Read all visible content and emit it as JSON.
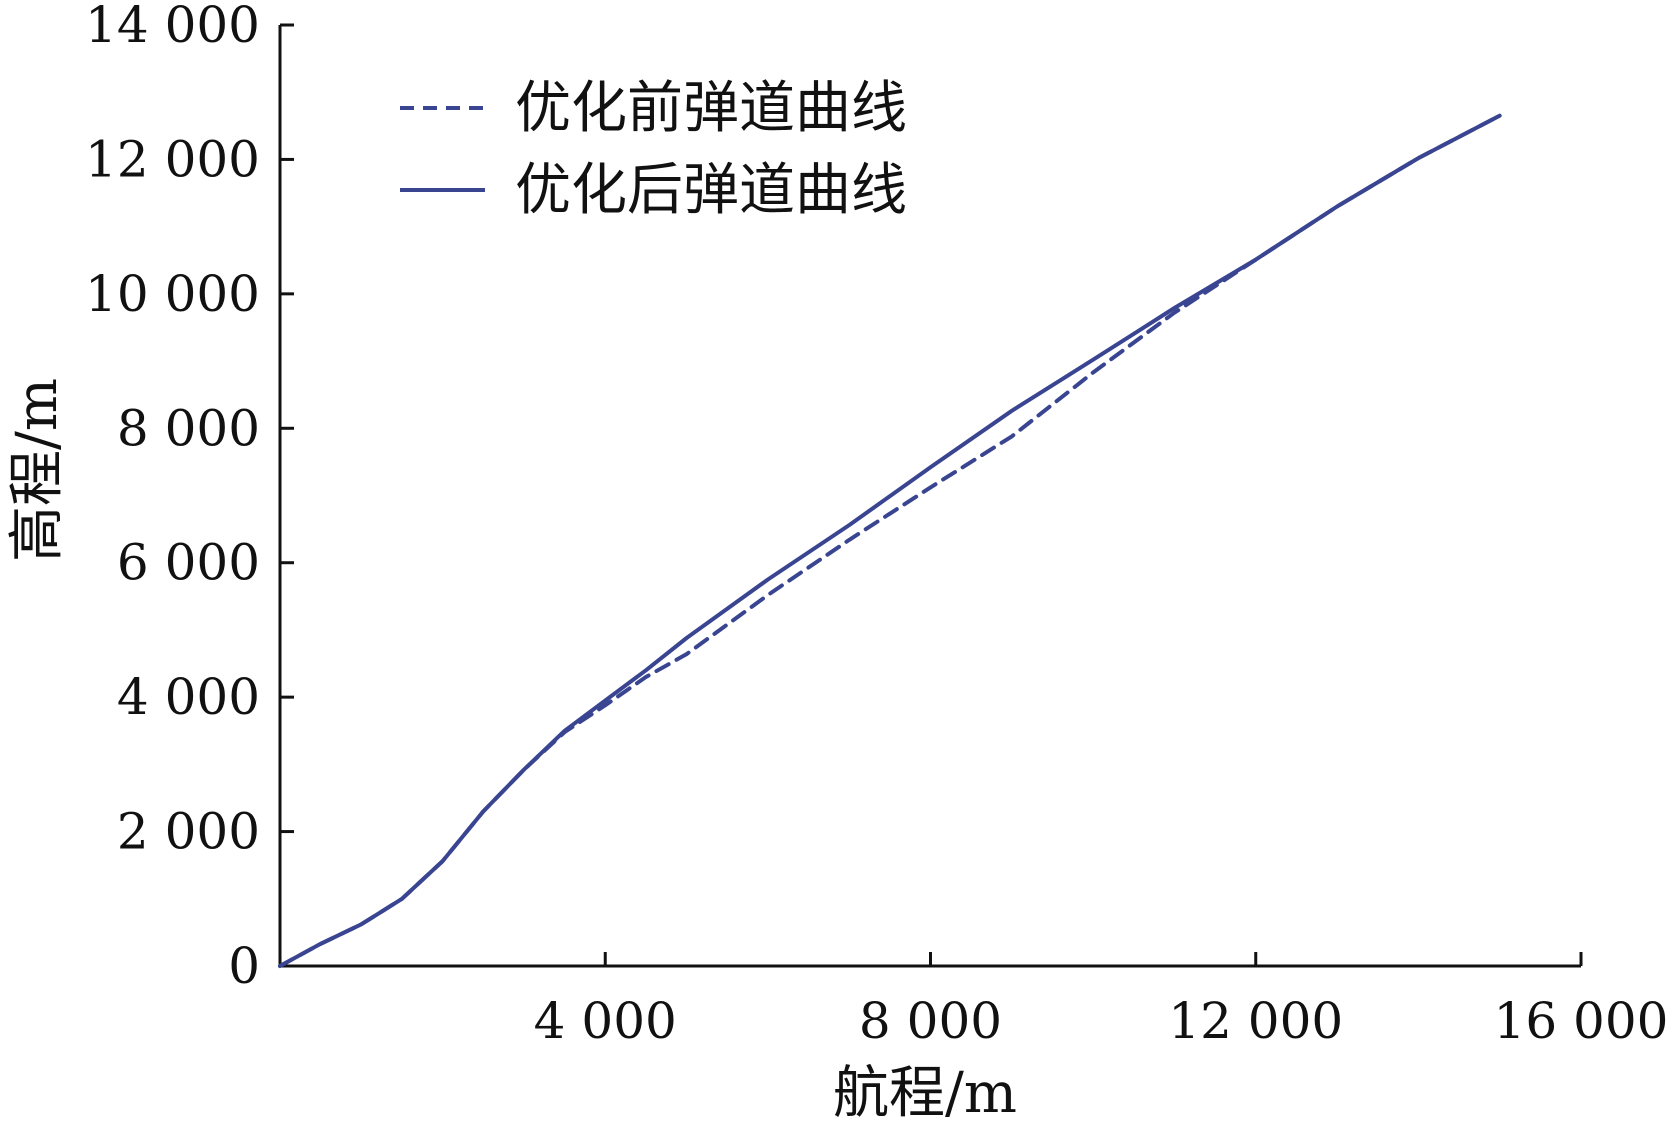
{
  "chart_data": {
    "type": "line",
    "title": "",
    "xlabel": "航程/m",
    "ylabel": "高程/m",
    "xlim": [
      0,
      16000
    ],
    "ylim": [
      0,
      14000
    ],
    "xticks": [
      4000,
      8000,
      12000,
      16000
    ],
    "xtick_labels": [
      "4 000",
      "8 000",
      "12 000",
      "16 000"
    ],
    "yticks": [
      0,
      2000,
      4000,
      6000,
      8000,
      10000,
      12000,
      14000
    ],
    "ytick_labels": [
      "0",
      "2 000",
      "4 000",
      "6 000",
      "8 000",
      "10 000",
      "12 000",
      "14 000"
    ],
    "grid": false,
    "legend_position": "top-left",
    "colors": {
      "line": "#3a4592",
      "axis": "#111111"
    },
    "series": [
      {
        "name": "优化前弹道曲线",
        "style": "dashed",
        "points": [
          [
            0,
            0
          ],
          [
            500,
            330
          ],
          [
            1000,
            620
          ],
          [
            1500,
            1000
          ],
          [
            2000,
            1560
          ],
          [
            2500,
            2300
          ],
          [
            3000,
            2920
          ],
          [
            3500,
            3480
          ],
          [
            4000,
            3880
          ],
          [
            4500,
            4300
          ],
          [
            5000,
            4640
          ],
          [
            6000,
            5520
          ],
          [
            7000,
            6340
          ],
          [
            8000,
            7120
          ],
          [
            9000,
            7880
          ],
          [
            10000,
            8830
          ],
          [
            11000,
            9720
          ],
          [
            12000,
            10510
          ],
          [
            13000,
            11300
          ],
          [
            14000,
            12020
          ],
          [
            15000,
            12650
          ]
        ]
      },
      {
        "name": "优化后弹道曲线",
        "style": "solid",
        "points": [
          [
            0,
            0
          ],
          [
            500,
            330
          ],
          [
            1000,
            620
          ],
          [
            1500,
            1000
          ],
          [
            2000,
            1560
          ],
          [
            2500,
            2300
          ],
          [
            3000,
            2920
          ],
          [
            3500,
            3500
          ],
          [
            4000,
            3950
          ],
          [
            4500,
            4400
          ],
          [
            5000,
            4880
          ],
          [
            6000,
            5750
          ],
          [
            7000,
            6560
          ],
          [
            8000,
            7420
          ],
          [
            9000,
            8260
          ],
          [
            10000,
            9020
          ],
          [
            11000,
            9790
          ],
          [
            12000,
            10510
          ],
          [
            13000,
            11300
          ],
          [
            14000,
            12020
          ],
          [
            15000,
            12650
          ]
        ]
      }
    ]
  }
}
